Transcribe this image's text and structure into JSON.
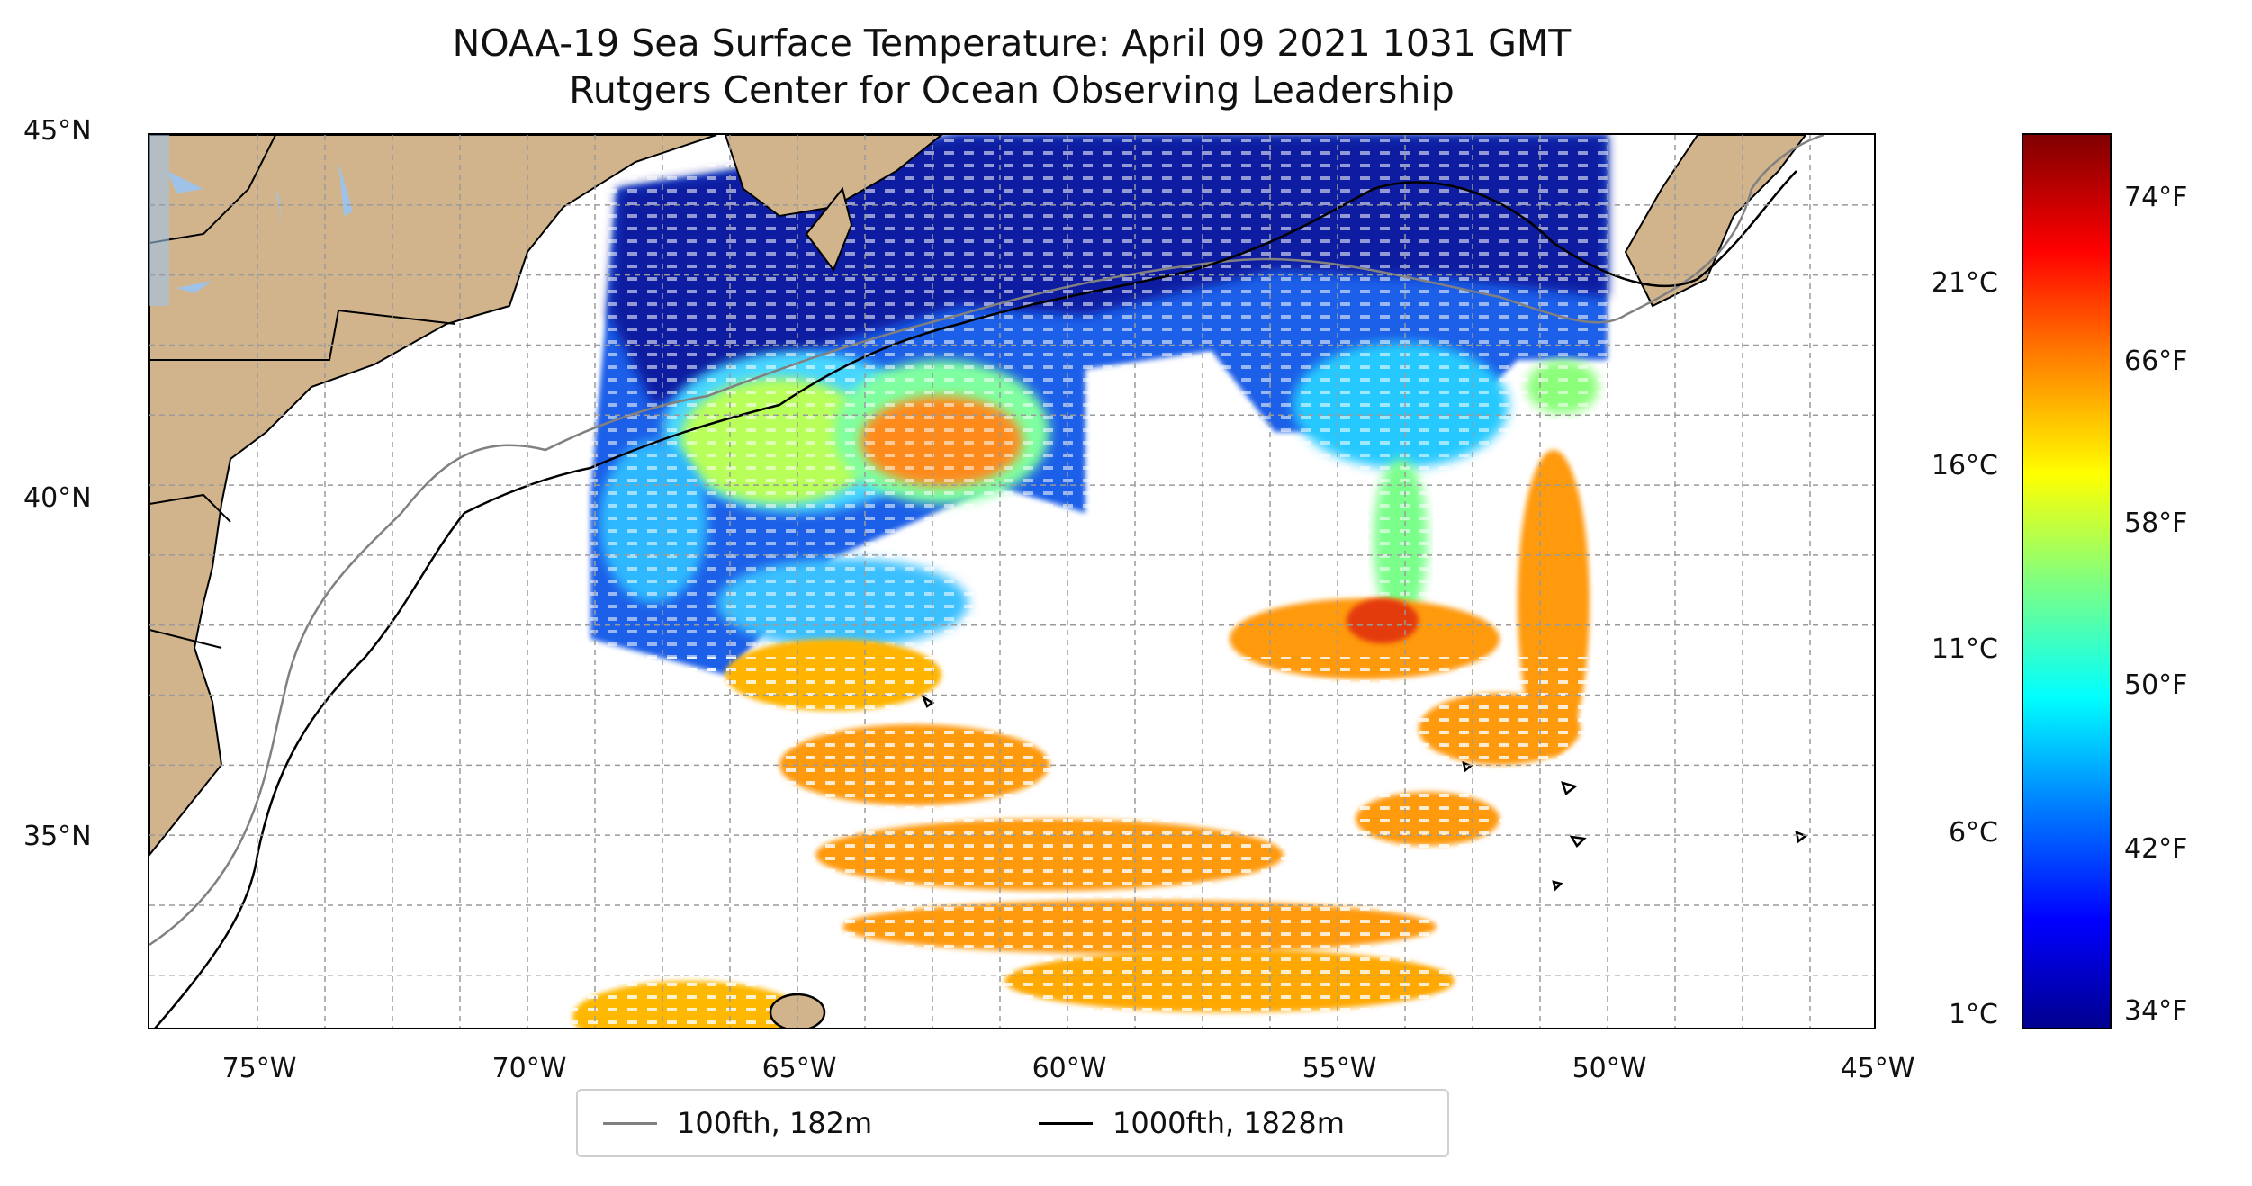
{
  "title": {
    "line1": "NOAA-19 Sea Surface Temperature: April 09 2021 1031 GMT",
    "line2": "Rutgers Center for Ocean Observing Leadership"
  },
  "map": {
    "lon_range": [
      -77,
      -45
    ],
    "lat_range": [
      32.2,
      45
    ],
    "lat_ticks": [
      "45°N",
      "40°N",
      "35°N"
    ],
    "lon_ticks": [
      "75°W",
      "70°W",
      "65°W",
      "60°W",
      "55°W",
      "50°W",
      "45°W"
    ],
    "gridlines": true,
    "land_color": "#d2b48c",
    "lake_color": "#9fc3e8"
  },
  "legend": {
    "items": [
      {
        "label": "100fth, 182m",
        "color": "#808080"
      },
      {
        "label": "1000fth, 1828m",
        "color": "#000000"
      }
    ]
  },
  "colorbar": {
    "colormap": "jet",
    "celsius_ticks": [
      "21°C",
      "16°C",
      "11°C",
      "6°C",
      "1°C"
    ],
    "fahrenheit_ticks": [
      "74°F",
      "66°F",
      "58°F",
      "50°F",
      "42°F",
      "34°F"
    ]
  }
}
